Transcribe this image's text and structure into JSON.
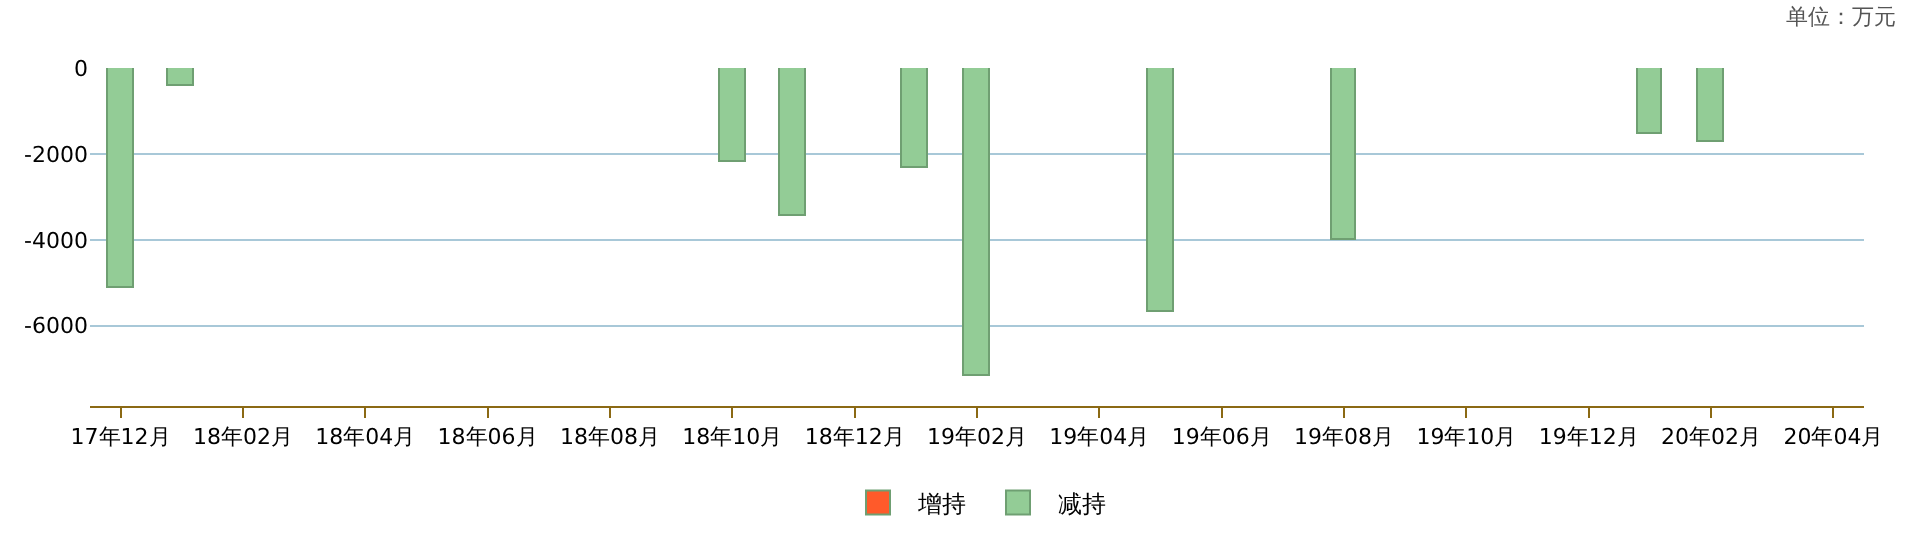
{
  "chart_data": {
    "type": "bar",
    "categories": [
      "17年12月",
      null,
      "18年02月",
      null,
      "18年04月",
      null,
      "18年06月",
      null,
      "18年08月",
      null,
      "18年10月",
      null,
      "18年12月",
      null,
      "19年02月",
      null,
      "19年04月",
      null,
      "19年06月",
      null,
      "19年08月",
      null,
      "19年10月",
      null,
      "19年12月",
      null,
      "20年02月",
      null,
      "20年04月"
    ],
    "series": [
      {
        "name": "增持",
        "color": "#ff5a2a",
        "values": [
          null,
          null,
          null,
          null,
          null,
          null,
          null,
          null,
          null,
          null,
          null,
          null,
          null,
          null,
          null,
          null,
          null,
          null,
          null,
          null,
          null,
          null,
          null,
          null,
          null,
          null,
          null,
          null,
          null
        ]
      },
      {
        "name": "减持",
        "color": "#93cc96",
        "values": [
          -5110,
          -400,
          null,
          null,
          null,
          null,
          null,
          null,
          null,
          null,
          -2210,
          -3450,
          null,
          -2340,
          -7150,
          null,
          null,
          -5700,
          null,
          null,
          -4000,
          null,
          null,
          null,
          null,
          -1530,
          -1700,
          null,
          null
        ]
      }
    ],
    "ylim": [
      -7870,
      0
    ],
    "yticks": [
      0,
      -2000,
      -4000,
      -6000
    ],
    "grid": "y",
    "legend": "bottom",
    "annotations": [
      "单位：万元"
    ]
  }
}
